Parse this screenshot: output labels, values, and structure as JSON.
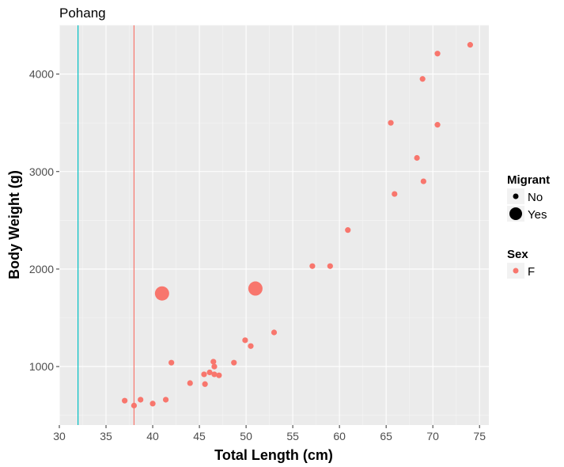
{
  "chart_data": {
    "type": "scatter",
    "title": "Pohang",
    "xlabel": "Total Length (cm)",
    "ylabel": "Body Weight (g)",
    "xlim": [
      30,
      76
    ],
    "ylim": [
      400,
      4500
    ],
    "x_ticks": [
      30,
      35,
      40,
      45,
      50,
      55,
      60,
      65,
      70,
      75
    ],
    "y_ticks": [
      1000,
      2000,
      3000,
      4000
    ],
    "grid": true,
    "legend_position": "right",
    "colors": {
      "panel_bg": "#ebebeb",
      "grid_major": "#ffffff",
      "grid_minor": "#f5f5f5",
      "female": "#f8766d",
      "male_line": "#00bfc4"
    },
    "vlines": [
      {
        "x": 32,
        "color": "#00bfc4"
      },
      {
        "x": 38,
        "color": "#f8766d"
      }
    ],
    "points": [
      {
        "x": 37,
        "y": 650,
        "migrant": "No"
      },
      {
        "x": 38,
        "y": 600,
        "migrant": "No"
      },
      {
        "x": 38.7,
        "y": 660,
        "migrant": "No"
      },
      {
        "x": 40,
        "y": 620,
        "migrant": "No"
      },
      {
        "x": 41.4,
        "y": 660,
        "migrant": "No"
      },
      {
        "x": 42,
        "y": 1040,
        "migrant": "No"
      },
      {
        "x": 41,
        "y": 1750,
        "migrant": "Yes"
      },
      {
        "x": 44,
        "y": 830,
        "migrant": "No"
      },
      {
        "x": 45.5,
        "y": 920,
        "migrant": "No"
      },
      {
        "x": 45.6,
        "y": 820,
        "migrant": "No"
      },
      {
        "x": 46.1,
        "y": 940,
        "migrant": "No"
      },
      {
        "x": 46.5,
        "y": 1050,
        "migrant": "No"
      },
      {
        "x": 46.6,
        "y": 1000,
        "migrant": "No"
      },
      {
        "x": 46.6,
        "y": 920,
        "migrant": "No"
      },
      {
        "x": 47.1,
        "y": 910,
        "migrant": "No"
      },
      {
        "x": 48.7,
        "y": 1040,
        "migrant": "No"
      },
      {
        "x": 49.9,
        "y": 1270,
        "migrant": "No"
      },
      {
        "x": 50.5,
        "y": 1210,
        "migrant": "No"
      },
      {
        "x": 51,
        "y": 1800,
        "migrant": "Yes"
      },
      {
        "x": 53,
        "y": 1350,
        "migrant": "No"
      },
      {
        "x": 57.1,
        "y": 2030,
        "migrant": "No"
      },
      {
        "x": 59,
        "y": 2030,
        "migrant": "No"
      },
      {
        "x": 60.9,
        "y": 2400,
        "migrant": "No"
      },
      {
        "x": 65.5,
        "y": 3500,
        "migrant": "No"
      },
      {
        "x": 65.9,
        "y": 2770,
        "migrant": "No"
      },
      {
        "x": 68.3,
        "y": 3140,
        "migrant": "No"
      },
      {
        "x": 68.9,
        "y": 3950,
        "migrant": "No"
      },
      {
        "x": 69,
        "y": 2900,
        "migrant": "No"
      },
      {
        "x": 70.5,
        "y": 3480,
        "migrant": "No"
      },
      {
        "x": 70.5,
        "y": 4210,
        "migrant": "No"
      },
      {
        "x": 74,
        "y": 4300,
        "migrant": "No"
      }
    ],
    "legend": {
      "migrant_title": "Migrant",
      "migrant_items": [
        "No",
        "Yes"
      ],
      "sex_title": "Sex",
      "sex_items": [
        "F"
      ]
    }
  }
}
